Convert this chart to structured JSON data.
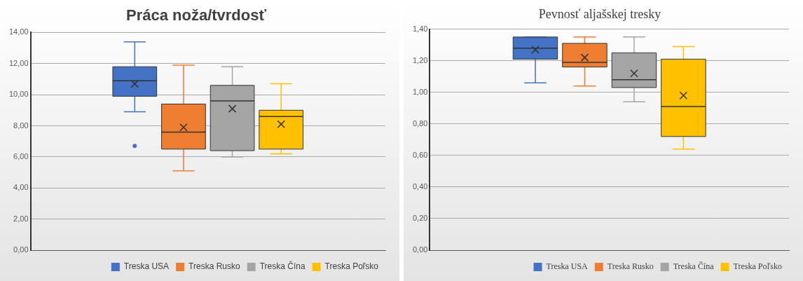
{
  "chart_data": [
    {
      "type": "box",
      "title": "Práca noža/tvrdosť",
      "categories": [
        null
      ],
      "legend": "bottom",
      "grid": "y",
      "ylim": [
        0,
        14
      ],
      "yticks": [
        {
          "value": 0,
          "label": "0,00"
        },
        {
          "value": 2,
          "label": "2,00"
        },
        {
          "value": 4,
          "label": "4,00"
        },
        {
          "value": 6,
          "label": "6,00"
        },
        {
          "value": 8,
          "label": "8,00"
        },
        {
          "value": 10,
          "label": "10,00"
        },
        {
          "value": 12,
          "label": "12,00"
        },
        {
          "value": 14,
          "label": "14,00"
        }
      ],
      "series": [
        {
          "name": "Treska USA",
          "color": "#4472c4",
          "boxes": [
            {
              "low": 8.9,
              "q1": 9.9,
              "median": 10.9,
              "q3": 11.8,
              "high": 13.4,
              "mean": 10.7,
              "outliers": [
                6.7
              ]
            }
          ]
        },
        {
          "name": "Treska Rusko",
          "color": "#ed7d31",
          "boxes": [
            {
              "low": 5.1,
              "q1": 6.5,
              "median": 7.6,
              "q3": 9.4,
              "high": 11.9,
              "mean": 7.9
            }
          ]
        },
        {
          "name": "Treska Čína",
          "color": "#a5a5a5",
          "boxes": [
            {
              "low": 6.0,
              "q1": 6.4,
              "median": 9.6,
              "q3": 10.6,
              "high": 11.8,
              "mean": 9.1
            }
          ]
        },
        {
          "name": "Treska Poľsko",
          "color": "#ffc000",
          "boxes": [
            {
              "low": 6.2,
              "q1": 6.5,
              "median": 8.6,
              "q3": 9.0,
              "high": 10.7,
              "mean": 8.1
            }
          ]
        }
      ]
    },
    {
      "type": "box",
      "title": "Pevnosť aljašskej tresky",
      "categories": [
        null
      ],
      "legend": "bottom",
      "grid": "y",
      "ylim": [
        0,
        1.4
      ],
      "yticks": [
        {
          "value": 0,
          "label": "0,00"
        },
        {
          "value": 0.2,
          "label": "0,20"
        },
        {
          "value": 0.4,
          "label": "0,40"
        },
        {
          "value": 0.6,
          "label": "0,60"
        },
        {
          "value": 0.8,
          "label": "0,80"
        },
        {
          "value": 1.0,
          "label": "1,00"
        },
        {
          "value": 1.2,
          "label": "1,20"
        },
        {
          "value": 1.4,
          "label": "1,40"
        }
      ],
      "series": [
        {
          "name": "Treska USA",
          "color": "#4472c4",
          "boxes": [
            {
              "low": 1.06,
              "q1": 1.21,
              "median": 1.28,
              "q3": 1.35,
              "high": 1.35,
              "mean": 1.27
            }
          ]
        },
        {
          "name": "Treska Rusko",
          "color": "#ed7d31",
          "boxes": [
            {
              "low": 1.04,
              "q1": 1.16,
              "median": 1.19,
              "q3": 1.31,
              "high": 1.35,
              "mean": 1.22
            }
          ]
        },
        {
          "name": "Treska Čína",
          "color": "#a5a5a5",
          "boxes": [
            {
              "low": 0.94,
              "q1": 1.03,
              "median": 1.08,
              "q3": 1.25,
              "high": 1.35,
              "mean": 1.12
            }
          ]
        },
        {
          "name": "Treska Poľsko",
          "color": "#ffc000",
          "boxes": [
            {
              "low": 0.64,
              "q1": 0.72,
              "median": 0.91,
              "q3": 1.21,
              "high": 1.29,
              "mean": 0.98
            }
          ]
        }
      ]
    }
  ]
}
